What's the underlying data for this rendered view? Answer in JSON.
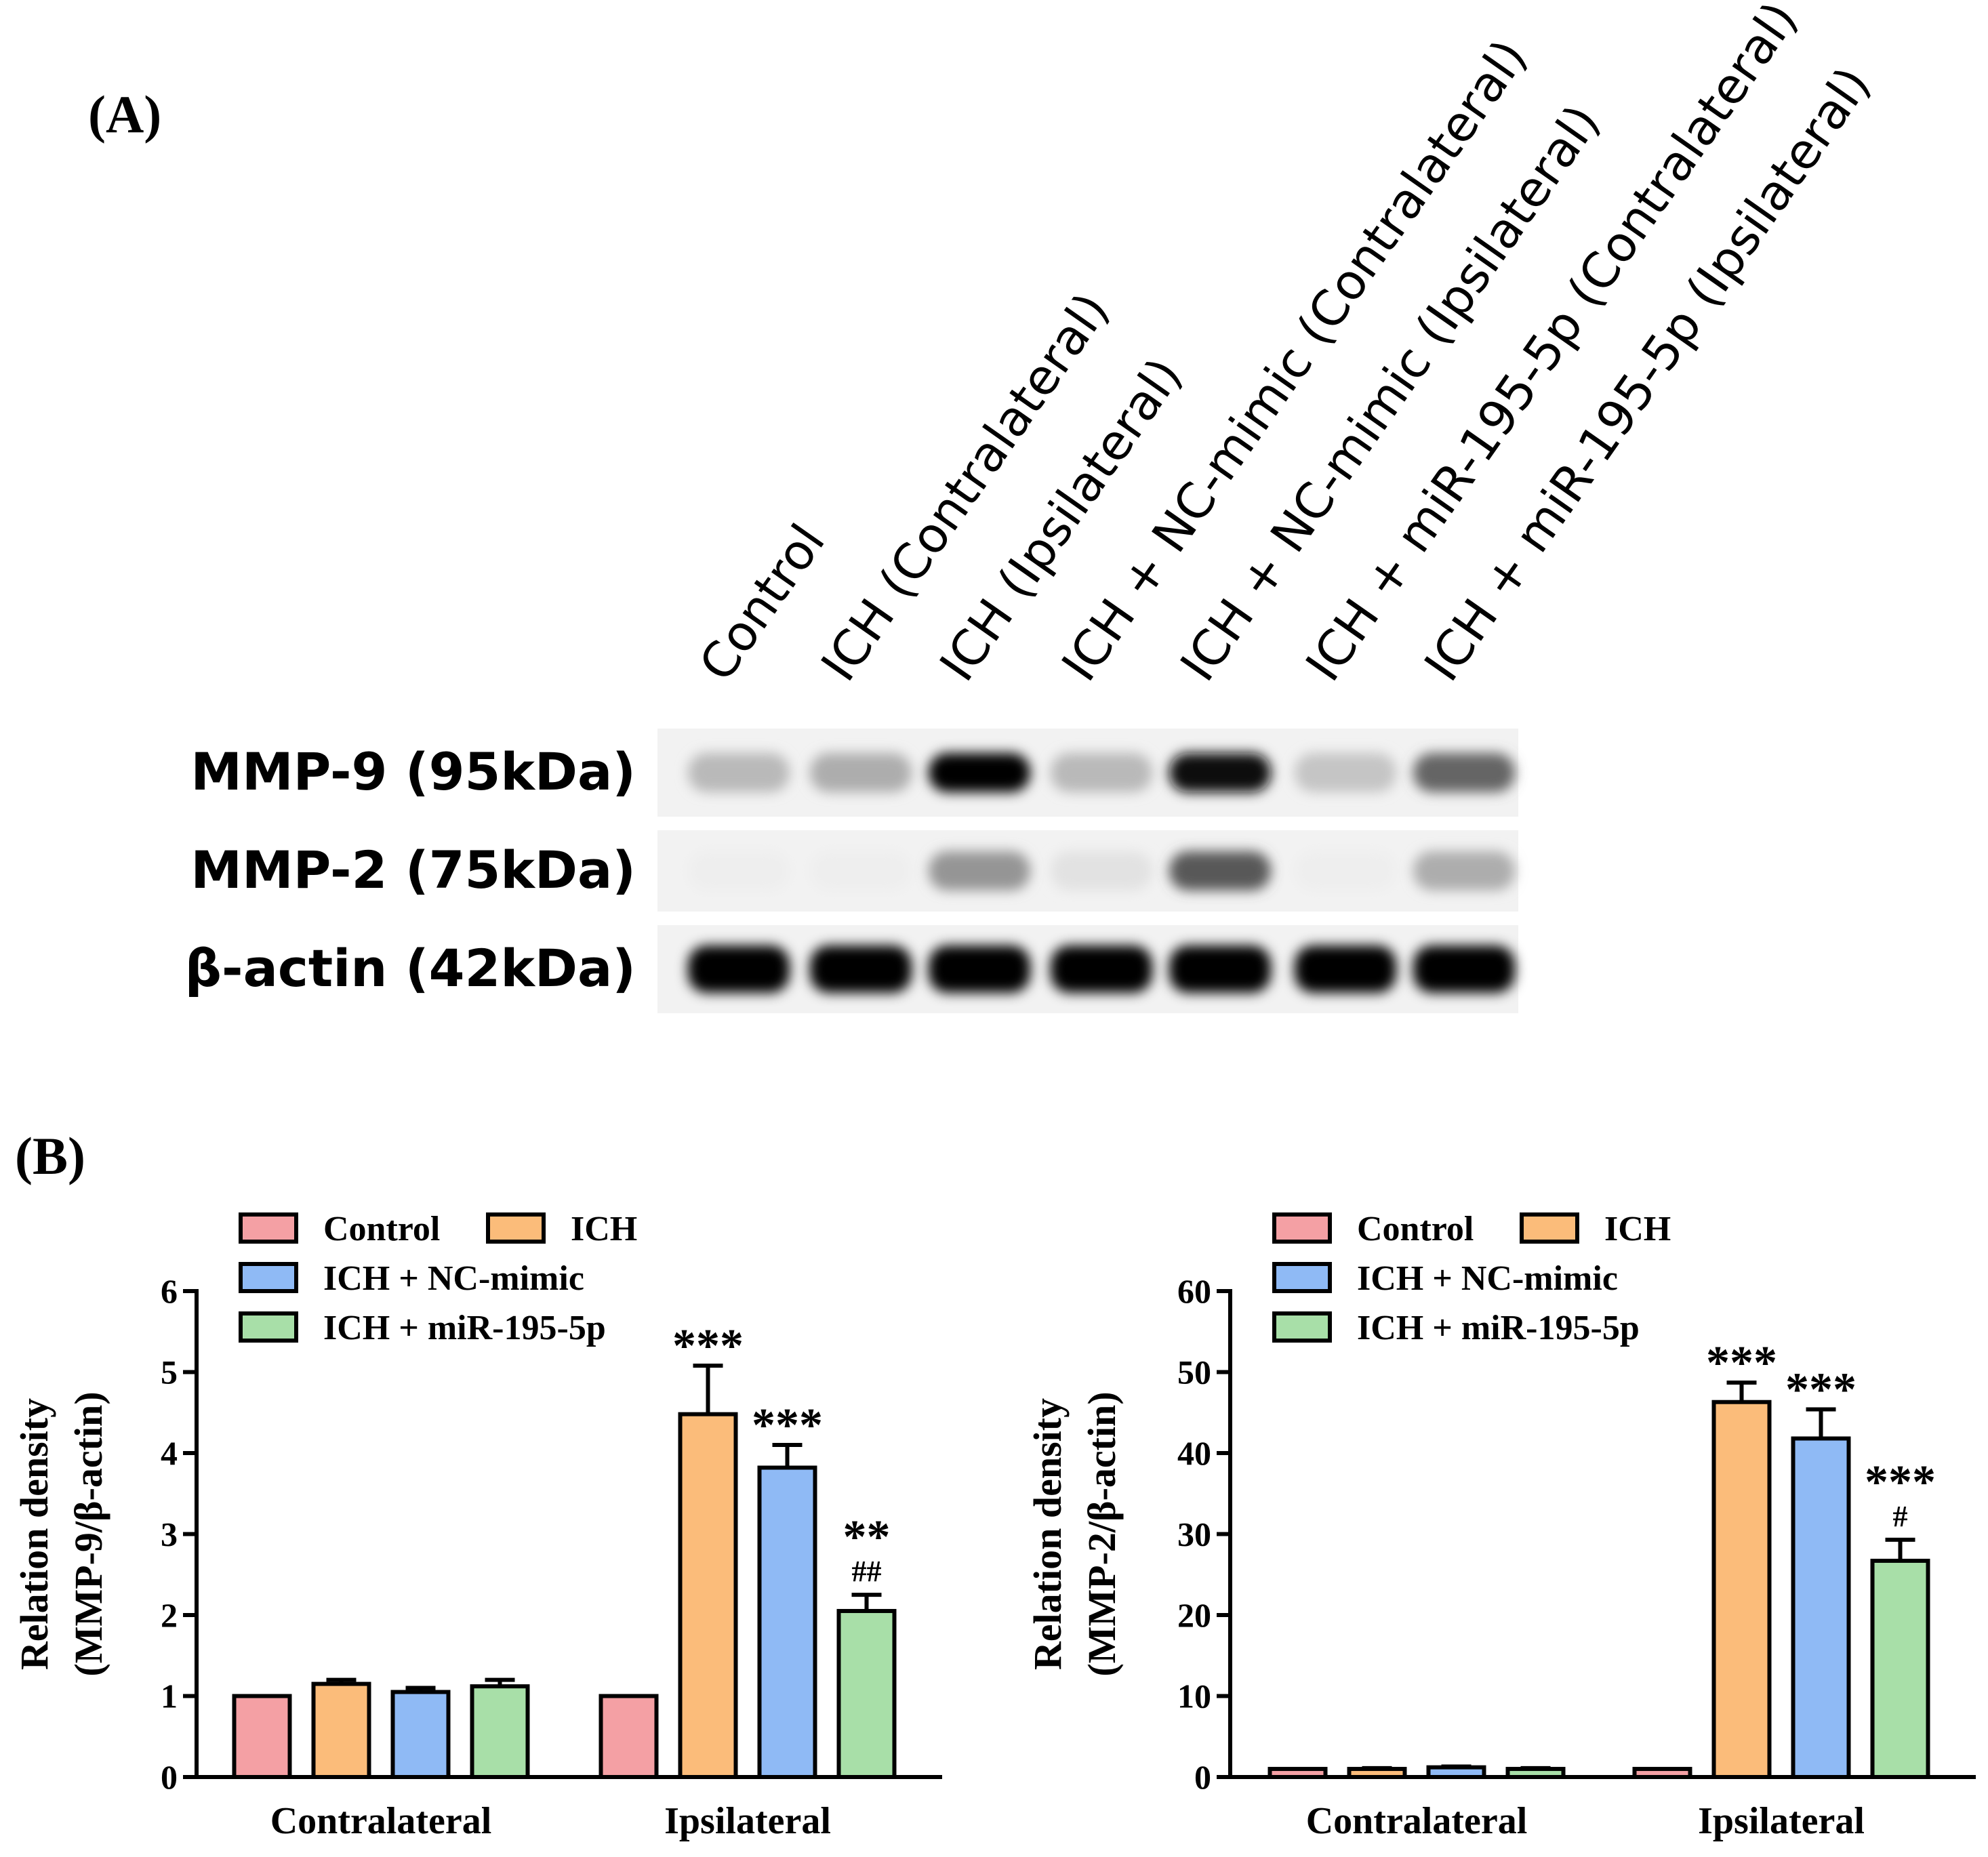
{
  "panel_a": {
    "label": "(A)",
    "lanes": [
      "Control",
      "ICH (Contralateral)",
      "ICH (Ipsilateral)",
      "ICH + NC-mimic (Contralateral)",
      "ICH + NC-mimic (Ipsilateral)",
      "ICH + miR-195-5p (Contralateral)",
      "ICH + miR-195-5p (Ipsilateral)"
    ],
    "blots": [
      {
        "label": "MMP-9 (95kDa)",
        "intensity": [
          0.25,
          0.3,
          1.0,
          0.25,
          0.95,
          0.2,
          0.6
        ]
      },
      {
        "label": "MMP-2 (75kDa)",
        "intensity": [
          0.03,
          0.03,
          0.4,
          0.08,
          0.65,
          0.03,
          0.3
        ]
      },
      {
        "label": "β-actin (42kDa)",
        "intensity": [
          1.0,
          1.0,
          1.0,
          1.0,
          1.0,
          1.0,
          1.0
        ]
      }
    ]
  },
  "panel_b_label": "(B)",
  "chart_data": [
    {
      "type": "bar",
      "ylabel_line1": "Relation density",
      "ylabel_line2": "(MMP-9/β-actin)",
      "categories": [
        "Contralateral",
        "Ipsilateral"
      ],
      "ylim": [
        0,
        6
      ],
      "yticks": [
        "0",
        "1",
        "2",
        "3",
        "4",
        "5",
        "6"
      ],
      "legend_position": "top-left",
      "series": [
        {
          "name": "Control",
          "color": "#f4a0a4",
          "values": [
            1.0,
            1.0
          ],
          "errors": [
            0,
            0
          ],
          "annotations": [
            "",
            ""
          ]
        },
        {
          "name": "ICH",
          "color": "#fbbc7a",
          "values": [
            1.15,
            4.48
          ],
          "errors": [
            0.05,
            0.6
          ],
          "annotations": [
            "",
            "***"
          ]
        },
        {
          "name": "ICH + NC-mimic",
          "color": "#8fbaf5",
          "values": [
            1.05,
            3.82
          ],
          "errors": [
            0.05,
            0.28
          ],
          "annotations": [
            "",
            "***"
          ]
        },
        {
          "name": "ICH + miR-195-5p",
          "color": "#a8dfa8",
          "values": [
            1.12,
            2.05
          ],
          "errors": [
            0.08,
            0.2
          ],
          "annotations": [
            "",
            "**\n##"
          ]
        }
      ]
    },
    {
      "type": "bar",
      "ylabel_line1": "Relation density",
      "ylabel_line2": "(MMP-2/β-actin)",
      "categories": [
        "Contralateral",
        "Ipsilateral"
      ],
      "ylim": [
        0,
        60
      ],
      "yticks": [
        "0",
        "10",
        "20",
        "30",
        "40",
        "50",
        "60"
      ],
      "legend_position": "top-left",
      "series": [
        {
          "name": "Control",
          "color": "#f4a0a4",
          "values": [
            1.0,
            1.0
          ],
          "errors": [
            0,
            0
          ],
          "annotations": [
            "",
            ""
          ]
        },
        {
          "name": "ICH",
          "color": "#fbbc7a",
          "values": [
            1.0,
            46.3
          ],
          "errors": [
            0.1,
            2.4
          ],
          "annotations": [
            "",
            "***"
          ]
        },
        {
          "name": "ICH + NC-mimic",
          "color": "#8fbaf5",
          "values": [
            1.2,
            41.8
          ],
          "errors": [
            0.1,
            3.6
          ],
          "annotations": [
            "",
            "***"
          ]
        },
        {
          "name": "ICH + miR-195-5p",
          "color": "#a8dfa8",
          "values": [
            1.0,
            26.7
          ],
          "errors": [
            0.1,
            2.6
          ],
          "annotations": [
            "",
            "***\n#"
          ]
        }
      ]
    }
  ]
}
